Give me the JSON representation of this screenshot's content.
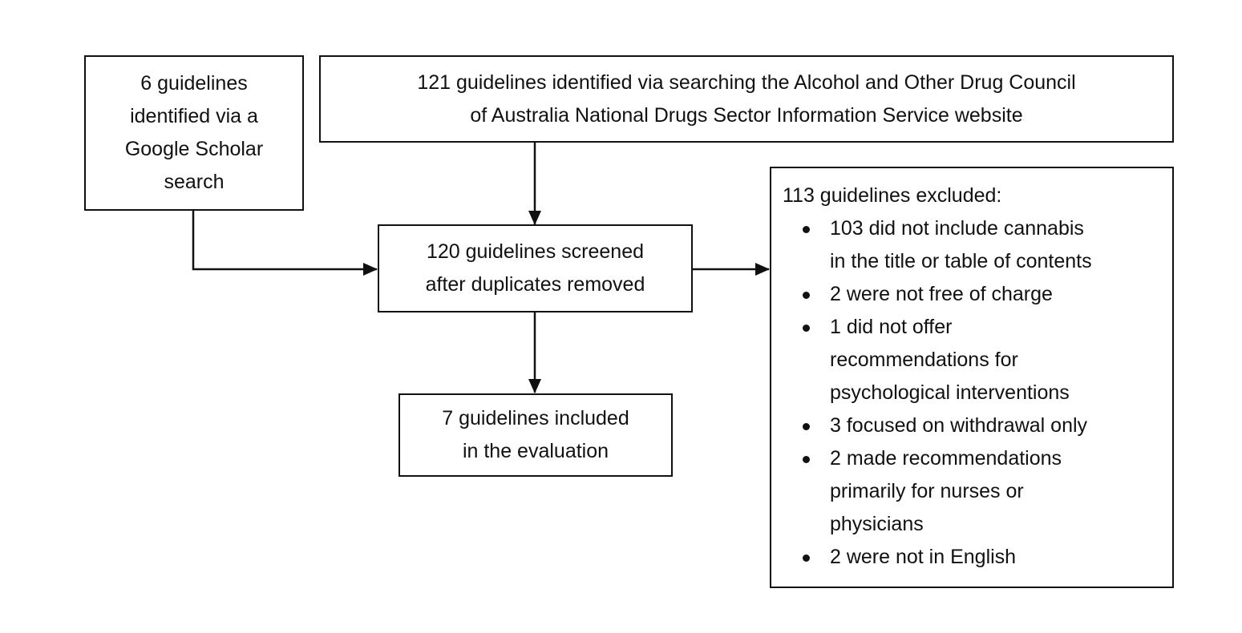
{
  "boxes": {
    "google_scholar": {
      "lines": [
        "6 guidelines",
        "identified via a",
        "Google Scholar",
        "search"
      ]
    },
    "adca": {
      "lines": [
        "121 guidelines identified via searching the Alcohol and Other Drug Council",
        "of Australia National Drugs Sector Information Service website"
      ]
    },
    "screened": {
      "lines": [
        "120 guidelines screened",
        "after duplicates removed"
      ]
    },
    "included": {
      "lines": [
        "7 guidelines included",
        "in the evaluation"
      ]
    },
    "excluded": {
      "heading": "113 guidelines excluded:",
      "items": [
        {
          "lines": [
            "103 did not include cannabis",
            "in the title or table of contents"
          ]
        },
        {
          "lines": [
            "2 were not free of charge"
          ]
        },
        {
          "lines": [
            "1 did not offer",
            "recommendations for",
            "psychological interventions"
          ]
        },
        {
          "lines": [
            "3 focused on withdrawal only"
          ]
        },
        {
          "lines": [
            "2 made recommendations",
            "primarily for nurses or",
            "physicians"
          ]
        },
        {
          "lines": [
            "2 were not in English"
          ]
        }
      ]
    }
  }
}
